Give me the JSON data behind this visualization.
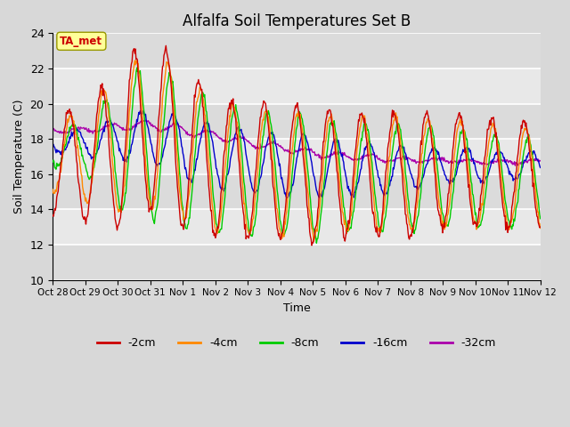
{
  "title": "Alfalfa Soil Temperatures Set B",
  "xlabel": "Time",
  "ylabel": "Soil Temperature (C)",
  "ylim": [
    10,
    24
  ],
  "yticks": [
    10,
    12,
    14,
    16,
    18,
    20,
    22,
    24
  ],
  "colors": {
    "-2cm": "#cc0000",
    "-4cm": "#ff8800",
    "-8cm": "#00cc00",
    "-16cm": "#0000cc",
    "-32cm": "#aa00aa"
  },
  "legend_labels": [
    "-2cm",
    "-4cm",
    "-8cm",
    "-16cm",
    "-32cm"
  ],
  "annotation_text": "TA_met",
  "annotation_color": "#cc0000",
  "annotation_bg": "#ffff99",
  "fig_facecolor": "#d8d8d8",
  "axes_facecolor": "#e8e8e8",
  "grid_color": "#ffffff",
  "xtick_labels": [
    "Oct 28",
    "Oct 29",
    "Oct 30",
    "Oct 31",
    "Nov 1",
    "Nov 2",
    "Nov 3",
    "Nov 4",
    "Nov 5",
    "Nov 6",
    "Nov 7",
    "Nov 8",
    "Nov 9",
    "Nov 10",
    "Nov 11",
    "Nov 12"
  ],
  "xtick_positions": [
    0,
    1,
    2,
    3,
    4,
    5,
    6,
    7,
    8,
    9,
    10,
    11,
    12,
    13,
    14,
    15
  ]
}
